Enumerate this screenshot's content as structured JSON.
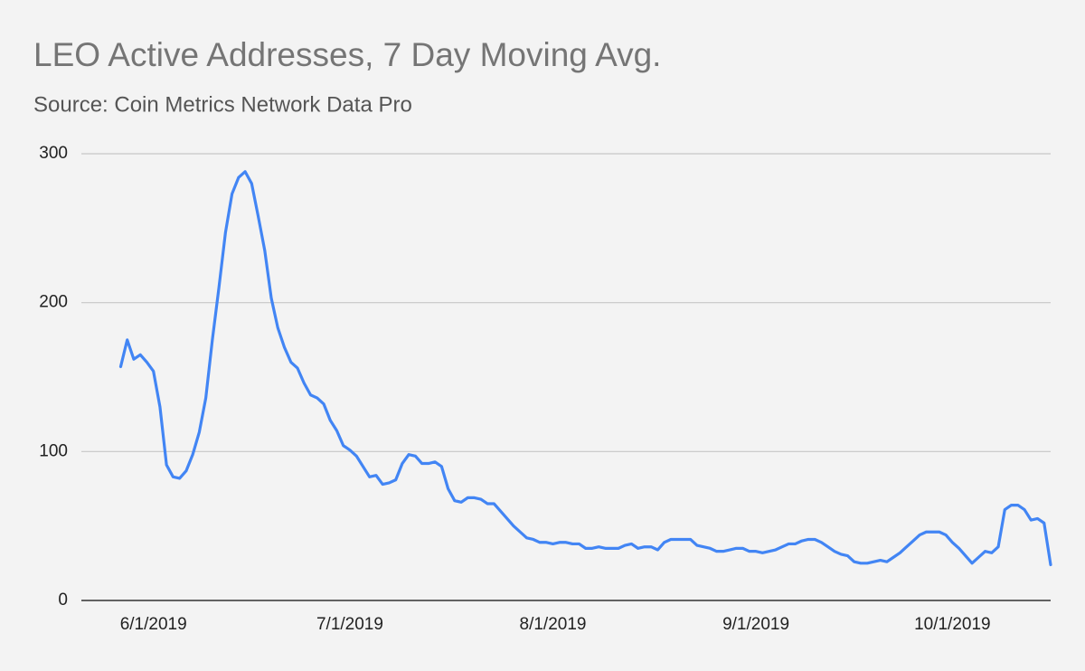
{
  "chart_data": {
    "type": "line",
    "title": "LEO Active Addresses, 7 Day Moving Avg.",
    "subtitle": "Source: Coin Metrics Network Data Pro",
    "x": [
      "5/27/2019",
      "5/28/2019",
      "5/29/2019",
      "5/30/2019",
      "5/31/2019",
      "6/1/2019",
      "6/2/2019",
      "6/3/2019",
      "6/4/2019",
      "6/5/2019",
      "6/6/2019",
      "6/7/2019",
      "6/8/2019",
      "6/9/2019",
      "6/10/2019",
      "6/11/2019",
      "6/12/2019",
      "6/13/2019",
      "6/14/2019",
      "6/15/2019",
      "6/16/2019",
      "6/17/2019",
      "6/18/2019",
      "6/19/2019",
      "6/20/2019",
      "6/21/2019",
      "6/22/2019",
      "6/23/2019",
      "6/24/2019",
      "6/25/2019",
      "6/26/2019",
      "6/27/2019",
      "6/28/2019",
      "6/29/2019",
      "6/30/2019",
      "7/1/2019",
      "7/2/2019",
      "7/3/2019",
      "7/4/2019",
      "7/5/2019",
      "7/6/2019",
      "7/7/2019",
      "7/8/2019",
      "7/9/2019",
      "7/10/2019",
      "7/11/2019",
      "7/12/2019",
      "7/13/2019",
      "7/14/2019",
      "7/15/2019",
      "7/16/2019",
      "7/17/2019",
      "7/18/2019",
      "7/19/2019",
      "7/20/2019",
      "7/21/2019",
      "7/22/2019",
      "7/23/2019",
      "7/24/2019",
      "7/25/2019",
      "7/26/2019",
      "7/27/2019",
      "7/28/2019",
      "7/29/2019",
      "7/30/2019",
      "7/31/2019",
      "8/1/2019",
      "8/2/2019",
      "8/3/2019",
      "8/4/2019",
      "8/5/2019",
      "8/6/2019",
      "8/7/2019",
      "8/8/2019",
      "8/9/2019",
      "8/10/2019",
      "8/11/2019",
      "8/12/2019",
      "8/13/2019",
      "8/14/2019",
      "8/15/2019",
      "8/16/2019",
      "8/17/2019",
      "8/18/2019",
      "8/19/2019",
      "8/20/2019",
      "8/21/2019",
      "8/22/2019",
      "8/23/2019",
      "8/24/2019",
      "8/25/2019",
      "8/26/2019",
      "8/27/2019",
      "8/28/2019",
      "8/29/2019",
      "8/30/2019",
      "8/31/2019",
      "9/1/2019",
      "9/2/2019",
      "9/3/2019",
      "9/4/2019",
      "9/5/2019",
      "9/6/2019",
      "9/7/2019",
      "9/8/2019",
      "9/9/2019",
      "9/10/2019",
      "9/11/2019",
      "9/12/2019",
      "9/13/2019",
      "9/14/2019",
      "9/15/2019",
      "9/16/2019",
      "9/17/2019",
      "9/18/2019",
      "9/19/2019",
      "9/20/2019",
      "9/21/2019",
      "9/22/2019",
      "9/23/2019",
      "9/24/2019",
      "9/25/2019",
      "9/26/2019",
      "9/27/2019",
      "9/28/2019",
      "9/29/2019",
      "9/30/2019",
      "10/1/2019",
      "10/2/2019",
      "10/3/2019",
      "10/4/2019",
      "10/5/2019",
      "10/6/2019",
      "10/7/2019",
      "10/8/2019",
      "10/9/2019",
      "10/10/2019",
      "10/11/2019",
      "10/12/2019",
      "10/13/2019",
      "10/14/2019",
      "10/15/2019",
      "10/16/2019"
    ],
    "series": [
      {
        "name": "LEO Active Addresses",
        "color": "#4285f4",
        "values": [
          157,
          175,
          162,
          165,
          160,
          154,
          130,
          91,
          83,
          82,
          87,
          98,
          113,
          136,
          175,
          210,
          247,
          273,
          284,
          288,
          280,
          258,
          235,
          203,
          183,
          170,
          160,
          156,
          146,
          138,
          136,
          132,
          121,
          114,
          104,
          101,
          97,
          90,
          83,
          84,
          78,
          79,
          81,
          92,
          98,
          97,
          92,
          92,
          93,
          90,
          75,
          67,
          66,
          69,
          69,
          68,
          65,
          65,
          60,
          55,
          50,
          46,
          42,
          41,
          39,
          39,
          38,
          39,
          39,
          38,
          38,
          35,
          35,
          36,
          35,
          35,
          35,
          37,
          38,
          35,
          36,
          36,
          34,
          39,
          41,
          41,
          41,
          41,
          37,
          36,
          35,
          33,
          33,
          34,
          35,
          35,
          33,
          33,
          32,
          33,
          34,
          36,
          38,
          38,
          40,
          41,
          41,
          39,
          36,
          33,
          31,
          30,
          26,
          25,
          25,
          26,
          27,
          26,
          29,
          32,
          36,
          40,
          44,
          46,
          46,
          46,
          44,
          39,
          35,
          30,
          25,
          29,
          33,
          32,
          36,
          61,
          64,
          64,
          61,
          54,
          55,
          52,
          24
        ]
      }
    ],
    "xlim": [
      "5/21/2019",
      "10/16/2019"
    ],
    "xticks": [
      "6/1/2019",
      "7/1/2019",
      "8/1/2019",
      "9/1/2019",
      "10/1/2019"
    ],
    "ylim": [
      0,
      300
    ],
    "yticks": [
      0,
      100,
      200,
      300
    ],
    "grid": true
  }
}
